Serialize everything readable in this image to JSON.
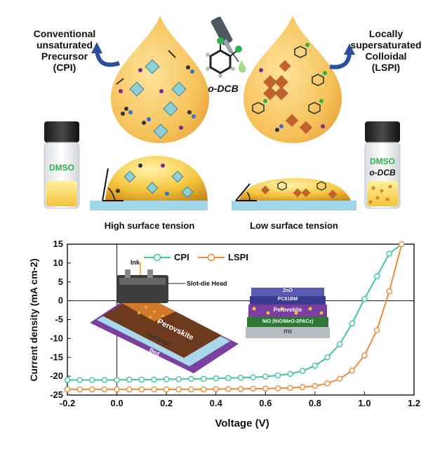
{
  "schematic": {
    "left_title": [
      "Conventional",
      "unsaturated",
      "Precursor",
      "(CPI)"
    ],
    "right_title": [
      "Locally",
      "supersaturated",
      "Colloidal",
      "(LSPI)"
    ],
    "additive_label": "o-DCB",
    "left_vial_label": "DMSO",
    "right_vial_label": [
      "DMSO",
      "o-DCB"
    ],
    "left_caption": "High surface tension",
    "right_caption": "Low surface tension",
    "colors": {
      "droplet": "#f3b844",
      "vial_text": "#2fb24a",
      "arrow": "#2a4fa0",
      "substrate": "#9fd6ea"
    }
  },
  "inset": {
    "ink": "Ink",
    "head": "Slot-die Head",
    "film": "Perovskite",
    "substrate": "Substrate",
    "bed": "Bed",
    "layers": [
      "ZnO",
      "PC61BM",
      "Perovskite",
      "NiO (NiO/MeO-2PACz)",
      "ITO"
    ]
  },
  "chart_data": {
    "type": "line",
    "xlabel": "Voltage (V)",
    "ylabel": "Current density (mA cm-2)",
    "xlim": [
      -0.2,
      1.2
    ],
    "ylim": [
      -25,
      15
    ],
    "xticks": [
      "-0.2",
      "0.0",
      "0.2",
      "0.4",
      "0.6",
      "0.8",
      "1.0",
      "1.2"
    ],
    "yticks": [
      "15",
      "10",
      "5",
      "0",
      "-5",
      "-10",
      "-15",
      "-20",
      "-25"
    ],
    "series": [
      {
        "name": "CPI",
        "color": "#3fc4a6",
        "x": [
          -0.2,
          -0.15,
          -0.1,
          -0.05,
          0,
          0.05,
          0.1,
          0.15,
          0.2,
          0.25,
          0.3,
          0.35,
          0.4,
          0.45,
          0.5,
          0.55,
          0.6,
          0.65,
          0.7,
          0.75,
          0.8,
          0.85,
          0.9,
          0.95,
          1.0,
          1.05,
          1.1,
          1.15
        ],
        "y": [
          -21.0,
          -21.0,
          -21.0,
          -21.0,
          -21.0,
          -20.9,
          -20.9,
          -20.9,
          -20.8,
          -20.8,
          -20.7,
          -20.7,
          -20.6,
          -20.5,
          -20.4,
          -20.3,
          -20.1,
          -19.8,
          -19.4,
          -18.6,
          -17.2,
          -15.0,
          -11.5,
          -6.0,
          0.5,
          6.5,
          12.5,
          15.0
        ]
      },
      {
        "name": "LSPI",
        "color": "#f08a3c",
        "x": [
          -0.2,
          -0.15,
          -0.1,
          -0.05,
          0,
          0.05,
          0.1,
          0.15,
          0.2,
          0.25,
          0.3,
          0.35,
          0.4,
          0.45,
          0.5,
          0.55,
          0.6,
          0.65,
          0.7,
          0.75,
          0.8,
          0.85,
          0.9,
          0.95,
          1.0,
          1.05,
          1.1,
          1.15
        ],
        "y": [
          -23.5,
          -23.5,
          -23.5,
          -23.5,
          -23.5,
          -23.5,
          -23.5,
          -23.5,
          -23.5,
          -23.5,
          -23.5,
          -23.5,
          -23.4,
          -23.4,
          -23.4,
          -23.3,
          -23.3,
          -23.2,
          -23.1,
          -22.9,
          -22.6,
          -21.9,
          -20.7,
          -18.5,
          -14.5,
          -7.8,
          2.5,
          15.0
        ]
      }
    ]
  }
}
